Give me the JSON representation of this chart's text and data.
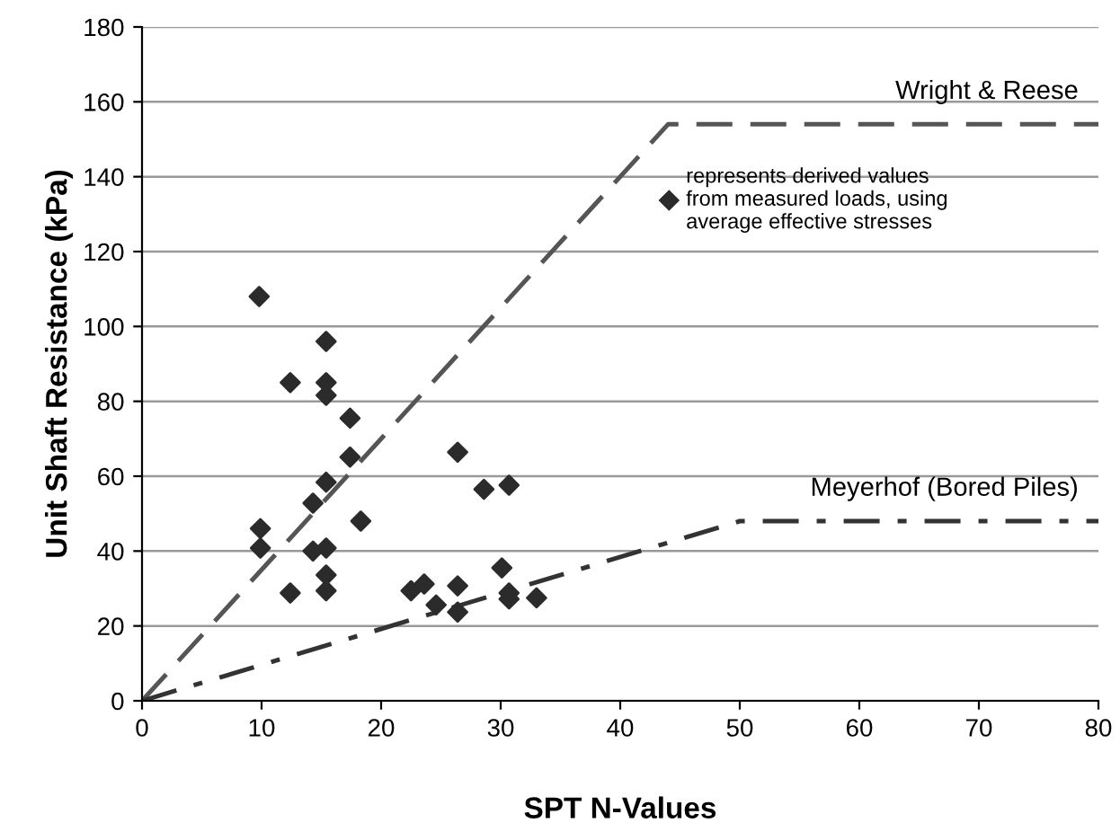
{
  "chart_data": {
    "type": "scatter",
    "xlabel": "SPT N-Values",
    "ylabel": "Unit Shaft Resistance (kPa)",
    "xlim": [
      0,
      80
    ],
    "ylim": [
      0,
      180
    ],
    "xticks": [
      0,
      10,
      20,
      30,
      40,
      50,
      60,
      70,
      80
    ],
    "yticks": [
      0,
      20,
      40,
      60,
      80,
      100,
      120,
      140,
      160,
      180
    ],
    "grid": "y",
    "legend": "top right",
    "marker": "diamond",
    "series": [
      {
        "name": "represents derived values\nfrom measured loads, using\naverage effective stresses",
        "color": "#2b2b2b",
        "x": [
          9.8,
          15.4,
          12.4,
          15.4,
          15.4,
          17.4,
          17.4,
          15.4,
          14.3,
          18.3,
          9.9,
          9.9,
          14.3,
          15.4,
          15.4,
          12.4,
          15.4,
          26.4,
          28.6,
          30.7,
          30.1,
          22.5,
          23.6,
          26.4,
          24.6,
          26.4,
          30.7,
          30.7,
          33.0
        ],
        "values": [
          108,
          96,
          85,
          85,
          81.6,
          75.5,
          65.1,
          58.4,
          52.8,
          48,
          46,
          40.8,
          40,
          40.8,
          33.6,
          28.8,
          29.4,
          66.4,
          56.5,
          57.6,
          35.5,
          29.4,
          31.2,
          30.7,
          25.6,
          23.7,
          28.8,
          27.2,
          27.5
        ]
      },
      {
        "name": "Wright & Reese",
        "type": "line",
        "color": "#555555",
        "line_style": "dashed",
        "marker": "none",
        "x": [
          0,
          44,
          80
        ],
        "values": [
          0,
          154,
          154
        ]
      },
      {
        "name": "Meyerhof (Bored Piles)",
        "type": "line",
        "color": "#333333",
        "line_style": "dashdot",
        "marker": "none",
        "x": [
          0,
          50,
          80
        ],
        "values": [
          0,
          48,
          48
        ]
      }
    ]
  }
}
